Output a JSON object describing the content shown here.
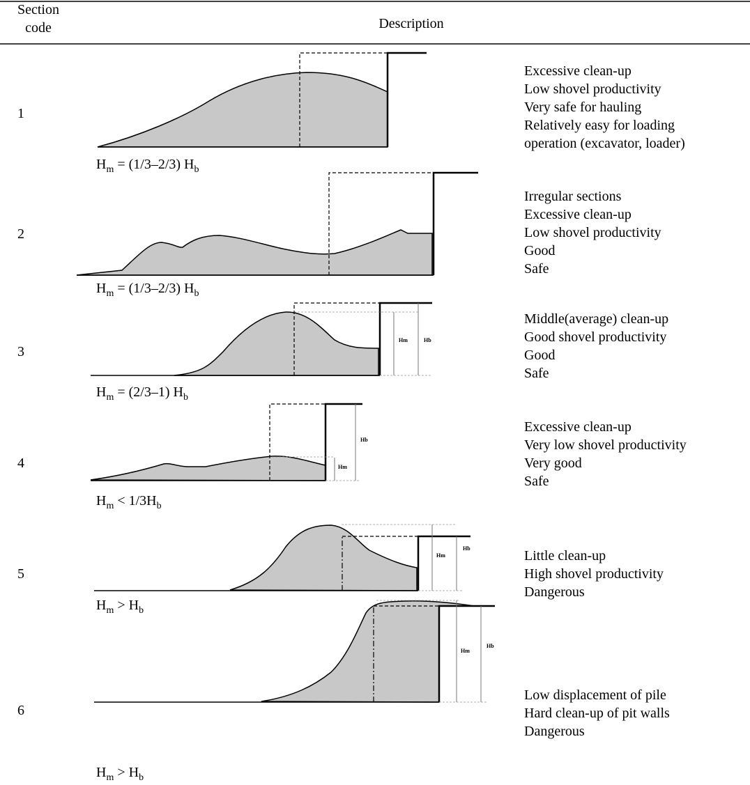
{
  "table": {
    "header": [
      "Section\ncode",
      "Description"
    ],
    "rows": [
      {
        "code": "1",
        "formula": [
          "H",
          "m",
          " = (1/3–2/3) H",
          "b"
        ],
        "description": [
          "Excessive clean-up",
          "Low shovel productivity",
          "Very safe for hauling",
          "Relatively easy for loading",
          "operation (excavator, loader)"
        ]
      },
      {
        "code": "2",
        "formula": [
          "H",
          "m",
          " = (1/3–2/3) H",
          "b"
        ],
        "description": [
          "Irregular sections",
          "Excessive clean-up",
          "Low shovel productivity",
          "Good",
          "Safe"
        ]
      },
      {
        "code": "3",
        "formula": [
          "H",
          "m",
          " = (2/3–1) H",
          "b"
        ],
        "labels": [
          "Hm",
          "Hb"
        ],
        "description": [
          "Middle(average) clean-up",
          "Good shovel productivity",
          "Good",
          "Safe"
        ]
      },
      {
        "code": "4",
        "formula": [
          "H",
          "m",
          " < 1/3H",
          "b"
        ],
        "labels": [
          "Hm",
          "Hb"
        ],
        "description": [
          "Excessive clean-up",
          "Very low shovel productivity",
          "Very good",
          "Safe"
        ]
      },
      {
        "code": "5",
        "formula": [
          "H",
          "m",
          " > H",
          "b"
        ],
        "labels": [
          "Hm",
          "Hb"
        ],
        "description": [
          "Little clean-up",
          "High shovel productivity",
          "Dangerous"
        ]
      },
      {
        "code": "6",
        "formula": [
          "H",
          "m",
          " > H",
          "b"
        ],
        "labels": [
          "Hm",
          "Hb"
        ],
        "description": [
          "Low displacement of pile",
          "Hard clean-up of pit walls",
          "Dangerous"
        ]
      }
    ]
  }
}
